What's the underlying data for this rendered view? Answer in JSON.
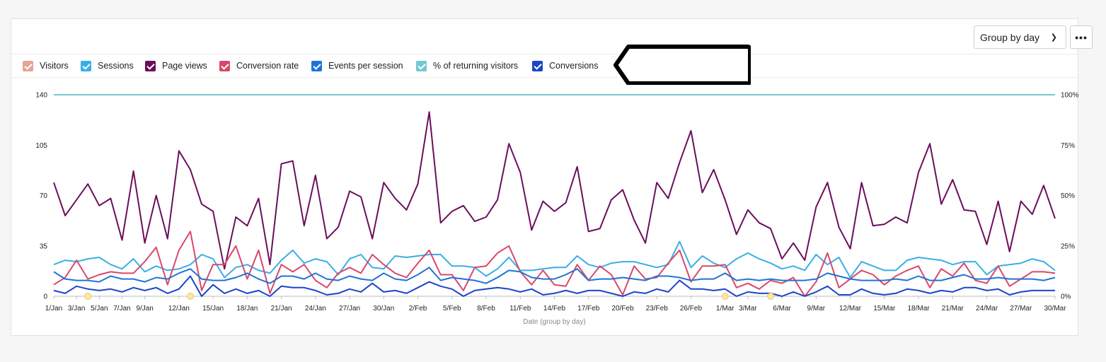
{
  "toolbar": {
    "group_label": "Group by day",
    "more_label": "•••"
  },
  "legend": [
    {
      "label": "Visitors",
      "color": "#e8a397"
    },
    {
      "label": "Sessions",
      "color": "#3aaee6"
    },
    {
      "label": "Page views",
      "color": "#6b0e5c"
    },
    {
      "label": "Conversion rate",
      "color": "#d9486a"
    },
    {
      "label": "Events per session",
      "color": "#1f74d6"
    },
    {
      "label": "% of returning visitors",
      "color": "#72c9d3"
    },
    {
      "label": "Conversions",
      "color": "#1b45c9"
    }
  ],
  "chart_data": {
    "type": "line",
    "xlabel": "Date (group by day)",
    "ylim_left": [
      0,
      140
    ],
    "ylim_right": [
      0,
      100
    ],
    "y_ticks_left": [
      "0",
      "35",
      "70",
      "105",
      "140"
    ],
    "y_ticks_right": [
      "0%",
      "25%",
      "50%",
      "75%",
      "100%"
    ],
    "x_range": [
      "1/Jan",
      "30/Mar"
    ],
    "x_ticks": [
      "1/Jan",
      "3/Jan",
      "5/Jan",
      "7/Jan",
      "9/Jan",
      "12/Jan",
      "15/Jan",
      "18/Jan",
      "21/Jan",
      "24/Jan",
      "27/Jan",
      "30/Jan",
      "2/Feb",
      "5/Feb",
      "8/Feb",
      "11/Feb",
      "14/Feb",
      "17/Feb",
      "20/Feb",
      "23/Feb",
      "26/Feb",
      "1/Mar",
      "3/Mar",
      "6/Mar",
      "9/Mar",
      "12/Mar",
      "15/Mar",
      "18/Mar",
      "21/Mar",
      "24/Mar",
      "27/Mar",
      "30/Mar"
    ],
    "series": [
      {
        "name": "Page views",
        "axis": "left",
        "values": [
          79,
          56,
          67,
          78,
          63,
          68,
          39,
          87,
          37,
          70,
          40,
          101,
          88,
          64,
          59,
          19,
          55,
          49,
          68,
          22,
          92,
          94,
          49,
          84,
          40,
          48,
          73,
          69,
          40,
          79,
          68,
          60,
          78,
          128,
          51,
          59,
          63,
          52,
          55,
          67,
          106,
          86,
          46,
          66,
          59,
          65,
          90,
          45,
          47,
          67,
          74,
          53,
          37,
          79,
          68,
          93,
          115,
          72,
          88,
          67,
          43,
          60,
          51,
          47,
          26,
          37,
          25,
          62,
          79,
          48,
          33,
          79,
          49,
          50,
          55,
          51,
          86,
          106,
          64,
          81,
          60,
          59,
          36,
          66,
          31,
          66,
          57,
          77,
          54
        ]
      },
      {
        "name": "Sessions",
        "axis": "left",
        "values": [
          22,
          25,
          24,
          26,
          27,
          22,
          19,
          26,
          17,
          21,
          18,
          19,
          22,
          29,
          26,
          13,
          20,
          22,
          18,
          16,
          25,
          32,
          23,
          26,
          24,
          15,
          26,
          29,
          20,
          19,
          28,
          27,
          28,
          29,
          29,
          21,
          21,
          20,
          14,
          19,
          27,
          18,
          18,
          19,
          20,
          20,
          28,
          22,
          20,
          23,
          24,
          24,
          22,
          20,
          22,
          38,
          20,
          28,
          23,
          20,
          26,
          30,
          26,
          23,
          19,
          21,
          18,
          29,
          22,
          27,
          13,
          24,
          21,
          18,
          18,
          25,
          27,
          26,
          25,
          22,
          24,
          24,
          15,
          21,
          22,
          23,
          26,
          24,
          18
        ]
      },
      {
        "name": "Conversion rate",
        "axis": "left",
        "values": [
          8,
          13,
          25,
          12,
          15,
          17,
          16,
          16,
          24,
          34,
          8,
          32,
          45,
          4,
          22,
          22,
          35,
          12,
          32,
          2,
          22,
          17,
          22,
          11,
          6,
          16,
          20,
          16,
          29,
          22,
          16,
          13,
          23,
          32,
          15,
          15,
          4,
          20,
          21,
          30,
          35,
          17,
          8,
          18,
          8,
          7,
          22,
          11,
          21,
          15,
          1,
          21,
          12,
          13,
          23,
          32,
          10,
          21,
          21,
          22,
          6,
          9,
          5,
          11,
          9,
          13,
          0,
          10,
          30,
          6,
          12,
          18,
          15,
          8,
          14,
          18,
          21,
          6,
          19,
          14,
          23,
          11,
          9,
          21,
          7,
          12,
          17,
          17,
          16
        ]
      },
      {
        "name": "% of returning visitors",
        "axis": "right",
        "values": [
          100,
          100,
          100,
          100,
          100,
          100,
          100,
          100,
          100,
          100,
          100,
          100,
          100,
          100,
          100,
          100,
          100,
          100,
          100,
          100,
          100,
          100,
          100,
          100,
          100,
          100,
          100,
          100,
          100,
          100,
          100,
          100,
          100,
          100,
          100,
          100,
          100,
          100,
          100,
          100,
          100,
          100,
          100,
          100,
          100,
          100,
          100,
          100,
          100,
          100,
          100,
          100,
          100,
          100,
          100,
          100,
          100,
          100,
          100,
          100,
          100,
          100,
          100,
          100,
          100,
          100,
          100,
          100,
          100,
          100,
          100,
          100,
          100,
          100,
          100,
          100,
          100,
          100,
          100,
          100,
          100,
          100,
          100,
          100,
          100,
          100,
          100,
          100,
          100
        ]
      },
      {
        "name": "Events per session",
        "axis": "left",
        "values": [
          17,
          12,
          11,
          11,
          10,
          14,
          12,
          12,
          10,
          13,
          12,
          16,
          19,
          12,
          11,
          11,
          13,
          16,
          12,
          9,
          14,
          14,
          12,
          16,
          12,
          11,
          14,
          12,
          11,
          16,
          12,
          11,
          15,
          20,
          11,
          13,
          12,
          11,
          9,
          13,
          18,
          17,
          13,
          12,
          12,
          15,
          19,
          11,
          12,
          12,
          13,
          12,
          11,
          14,
          14,
          13,
          11,
          12,
          12,
          16,
          11,
          12,
          11,
          12,
          11,
          11,
          11,
          12,
          16,
          14,
          12,
          11,
          11,
          11,
          12,
          11,
          14,
          11,
          11,
          13,
          15,
          12,
          12,
          13,
          12,
          12,
          12,
          11,
          13
        ]
      },
      {
        "name": "Conversions",
        "axis": "left",
        "values": [
          4,
          2,
          7,
          5,
          4,
          5,
          3,
          6,
          4,
          6,
          2,
          5,
          14,
          0,
          8,
          2,
          5,
          2,
          4,
          0,
          7,
          6,
          6,
          4,
          1,
          2,
          5,
          3,
          9,
          3,
          4,
          2,
          6,
          10,
          7,
          5,
          0,
          4,
          5,
          6,
          5,
          3,
          5,
          1,
          2,
          4,
          2,
          4,
          4,
          2,
          0,
          3,
          2,
          5,
          3,
          11,
          5,
          5,
          4,
          5,
          0,
          3,
          2,
          2,
          0,
          3,
          0,
          3,
          7,
          1,
          1,
          5,
          2,
          1,
          2,
          5,
          4,
          2,
          4,
          3,
          6,
          6,
          4,
          5,
          1,
          3,
          4,
          4,
          4
        ]
      }
    ]
  }
}
